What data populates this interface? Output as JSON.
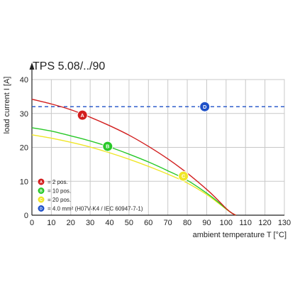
{
  "chart_data": {
    "type": "line",
    "title": "TPS 5.08/../90",
    "xlabel": "ambient temperature T [°C]",
    "ylabel": "load current I [A]",
    "xlim": [
      0,
      130
    ],
    "ylim": [
      0,
      40
    ],
    "xticks": [
      0,
      10,
      20,
      30,
      40,
      50,
      60,
      70,
      80,
      90,
      100,
      110,
      120,
      130
    ],
    "yticks": [
      0,
      10,
      20,
      30,
      40
    ],
    "grid": true,
    "grid_color": "#c8c8c8",
    "legend_position": "bottom-left",
    "series": [
      {
        "marker": "A",
        "color": "#d21e1e",
        "marker_at": [
          26,
          29.5
        ],
        "x": [
          0,
          10,
          20,
          30,
          40,
          50,
          60,
          70,
          80,
          90,
          95,
          100,
          103,
          105
        ],
        "y": [
          34.2,
          32.8,
          31.1,
          28.9,
          26.4,
          23.6,
          20.3,
          16.6,
          12.4,
          7.6,
          4.9,
          2.0,
          0.6,
          0
        ]
      },
      {
        "marker": "B",
        "color": "#28c828",
        "marker_at": [
          39,
          20.3
        ],
        "x": [
          0,
          10,
          20,
          30,
          40,
          50,
          60,
          70,
          80,
          90,
          95,
          100,
          103,
          105
        ],
        "y": [
          25.8,
          24.8,
          23.4,
          21.9,
          20.1,
          18.0,
          15.7,
          13.1,
          10.3,
          6.5,
          4.3,
          1.9,
          0.6,
          0
        ]
      },
      {
        "marker": "C",
        "color": "#f0e628",
        "marker_at": [
          78,
          11.5
        ],
        "x": [
          0,
          10,
          20,
          30,
          40,
          50,
          60,
          70,
          80,
          90,
          95,
          100,
          103,
          105
        ],
        "y": [
          23.7,
          22.7,
          21.5,
          20.1,
          18.4,
          16.5,
          14.4,
          12.1,
          9.5,
          6.1,
          4.0,
          1.8,
          0.6,
          0
        ]
      },
      {
        "marker": "D",
        "color": "#1e50c8",
        "line_style": "dashed",
        "marker_at": [
          89,
          32
        ],
        "x": [
          0,
          130
        ],
        "y": [
          32,
          32
        ]
      }
    ],
    "legend": [
      {
        "marker": "A",
        "color": "#d21e1e",
        "text": "= 2 pos."
      },
      {
        "marker": "B",
        "color": "#28c828",
        "text": "= 10 pos."
      },
      {
        "marker": "C",
        "color": "#f0e628",
        "text": "= 20 pos."
      },
      {
        "marker": "D",
        "color": "#1e50c8",
        "text": "= 4.0 mm² (H07V-K4 / IEC 60947-7-1)"
      }
    ]
  }
}
